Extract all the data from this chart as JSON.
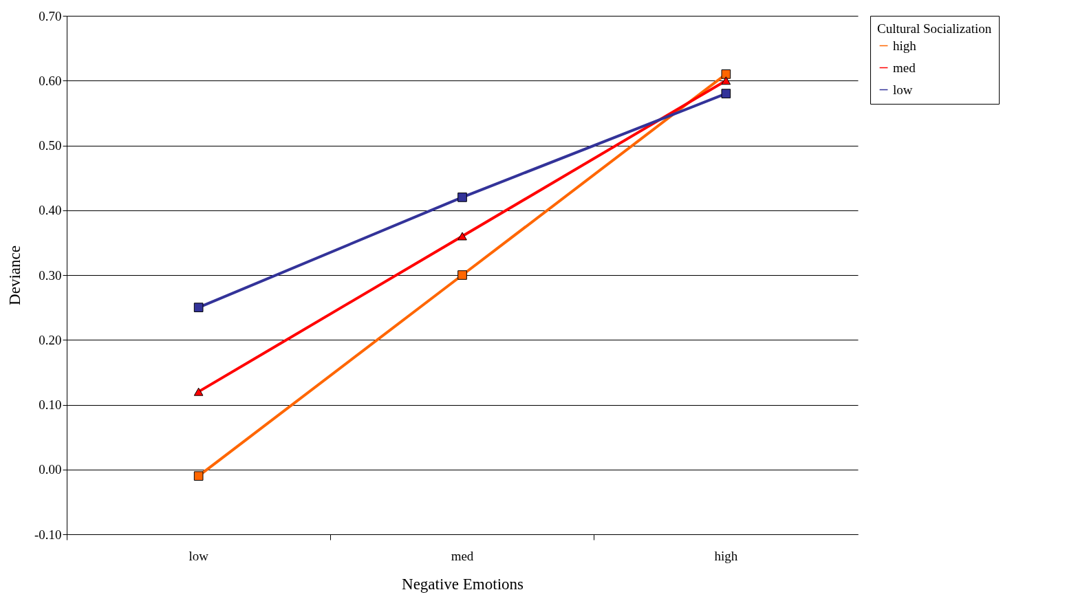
{
  "chart_data": {
    "type": "line",
    "xlabel": "Negative Emotions",
    "ylabel": "Deviance",
    "legend_title": "Cultural Socialization",
    "categories": [
      "low",
      "med",
      "high"
    ],
    "series": [
      {
        "name": "high",
        "color": "#ff6600",
        "marker": "square",
        "values": [
          -0.01,
          0.3,
          0.61
        ]
      },
      {
        "name": "med",
        "color": "#ff0000",
        "marker": "triangle",
        "values": [
          0.12,
          0.36,
          0.6
        ]
      },
      {
        "name": "low",
        "color": "#333399",
        "marker": "square",
        "values": [
          0.25,
          0.42,
          0.58
        ]
      }
    ],
    "ylim": [
      -0.1,
      0.7
    ],
    "yticks": [
      {
        "value": -0.1,
        "label": "-0.10"
      },
      {
        "value": 0,
        "label": "0.00"
      },
      {
        "value": 0.1,
        "label": "0.10"
      },
      {
        "value": 0.2,
        "label": "0.20"
      },
      {
        "value": 0.3,
        "label": "0.30"
      },
      {
        "value": 0.4,
        "label": "0.40"
      },
      {
        "value": 0.5,
        "label": "0.50"
      },
      {
        "value": 0.6,
        "label": "0.60"
      },
      {
        "value": 0.7,
        "label": "0.70"
      }
    ],
    "grid": "y",
    "legend": "right",
    "line_style": "solid"
  }
}
